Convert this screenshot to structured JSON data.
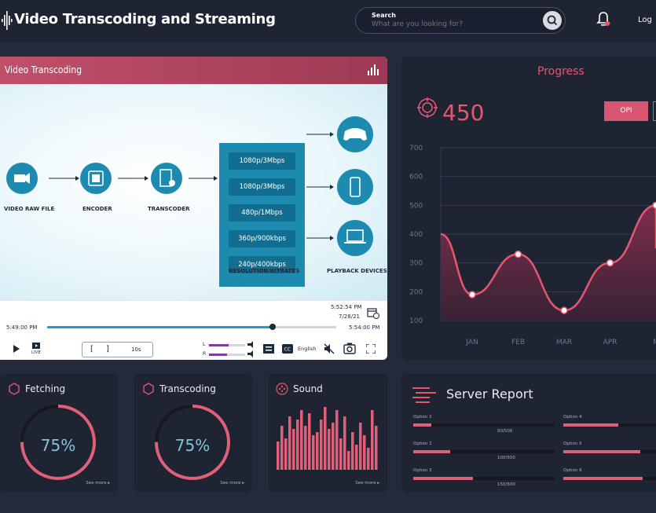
{
  "header": {
    "app_title": "Video Transcoding and Streaming",
    "search": {
      "label": "Search",
      "placeholder": "What are you looking for?"
    },
    "login_label": "Log"
  },
  "video_panel": {
    "title": "Video Transcoding",
    "diagram": {
      "nodes": [
        "VIDEO RAW FILE",
        "ENCODER",
        "TRANSCODER"
      ],
      "resolutions": [
        "1080p/3Mbps",
        "1080p/3Mbps",
        "480p/1Mbps",
        "360p/900kbps",
        "240p/400kbps"
      ],
      "resolutions_label": "RESOLUTION/BITRATES",
      "devices_label": "PLAYBACK DEVICES"
    },
    "player": {
      "end_time_top": "5:52:54 PM",
      "date": "7/28/21",
      "start_time": "5:49:00 PM",
      "end_time": "5:54:00 PM",
      "progress": 0.78,
      "live_label": "LIVE",
      "seg_value": "10s",
      "ch_left": "L",
      "ch_right": "R",
      "left_level": 0.55,
      "right_level": 0.5,
      "language": "English"
    }
  },
  "progress_panel": {
    "title": "Progress",
    "value": "450",
    "option_button": "OPI"
  },
  "chart_data": {
    "type": "line",
    "categories": [
      "JAN",
      "FEB",
      "MAR",
      "APR",
      "MAY"
    ],
    "visible_tick_labels": [
      "JAN",
      "FEB",
      "MAR",
      "APR",
      "M"
    ],
    "y_ticks": [
      "700",
      "600",
      "500",
      "400",
      "300",
      "200",
      "100"
    ],
    "ylim": [
      100,
      700
    ],
    "series": [
      {
        "values": [
          190,
          330,
          135,
          300,
          500
        ]
      }
    ],
    "colors": {
      "line": "#e6566f",
      "fill": "#6b2a44",
      "point": "#ffffff"
    },
    "grid": true
  },
  "cards": [
    {
      "title": "Fetching",
      "value": "75%",
      "percent": 0.75,
      "see_more": "See more ▸"
    },
    {
      "title": "Transcoding",
      "value": "75%",
      "percent": 0.75,
      "see_more": "See more ▸"
    },
    {
      "title": "Sound",
      "see_more": "See more ▸"
    }
  ],
  "sound_levels": [
    0.45,
    0.7,
    0.5,
    0.85,
    0.65,
    0.8,
    0.95,
    0.7,
    0.9,
    0.55,
    0.6,
    0.8,
    1.0,
    0.65,
    0.75,
    0.95,
    0.5,
    0.85,
    0.3,
    0.6,
    0.4,
    0.75,
    0.55,
    0.35,
    0.95,
    0.7
  ],
  "server_report": {
    "title": "Server Report",
    "options": [
      {
        "label": "Option 1",
        "value": "50/500",
        "fraction": 0.13
      },
      {
        "label": "Option 2",
        "value": "100/500",
        "fraction": 0.26
      },
      {
        "label": "Option 3",
        "value": "150/500",
        "fraction": 0.42
      },
      {
        "label": "Option 4",
        "value": "",
        "fraction": 0.5
      },
      {
        "label": "Option 5",
        "value": "",
        "fraction": 0.7
      },
      {
        "label": "Option 6",
        "value": "",
        "fraction": 0.72
      }
    ]
  },
  "colors": {
    "accent": "#e6566f",
    "background": "#242a3a",
    "panel": "#1f2433",
    "header_gradient": "#c0506a",
    "diagram_blue": "#1d8bb0",
    "ring_teal": "#7fc4d8"
  }
}
